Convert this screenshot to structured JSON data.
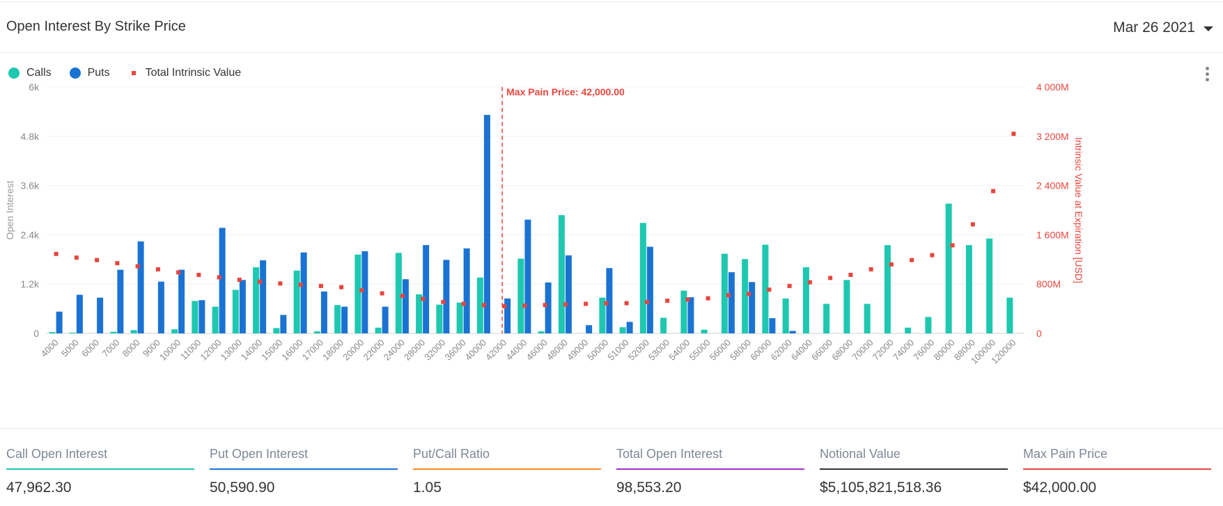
{
  "header": {
    "title": "Open Interest By Strike Price",
    "date": "Mar 26 2021"
  },
  "legend": [
    {
      "label": "Calls",
      "color": "#1ec8b0",
      "shape": "circle"
    },
    {
      "label": "Puts",
      "color": "#1a73d2",
      "shape": "circle"
    },
    {
      "label": "Total Intrinsic Value",
      "color": "#e8453c",
      "shape": "square"
    }
  ],
  "chart_data": {
    "type": "bar",
    "xlabel": "",
    "ylabel": "Open Interest",
    "y2label": "Intrinsic Value at Expiration [USD]",
    "ylim": [
      0,
      6000
    ],
    "y2lim": [
      0,
      4000
    ],
    "yticks": [
      "0",
      "1.2k",
      "2.4k",
      "3.6k",
      "4.8k",
      "6k"
    ],
    "y2ticks": [
      "0",
      "800M",
      "1 600M",
      "2 400M",
      "3 200M",
      "4 000M"
    ],
    "grid": true,
    "categories": [
      "4000",
      "5000",
      "6000",
      "7000",
      "8000",
      "9000",
      "10000",
      "11000",
      "12000",
      "13000",
      "14000",
      "15000",
      "16000",
      "17000",
      "18000",
      "20000",
      "22000",
      "24000",
      "28000",
      "32000",
      "36000",
      "40000",
      "42000",
      "44000",
      "46000",
      "48000",
      "49000",
      "50000",
      "51000",
      "52000",
      "53000",
      "54000",
      "55000",
      "56000",
      "58000",
      "60000",
      "62000",
      "64000",
      "66000",
      "68000",
      "70000",
      "72000",
      "74000",
      "76000",
      "80000",
      "88000",
      "100000",
      "120000"
    ],
    "series": [
      {
        "name": "Calls",
        "color": "#1ec8b0",
        "axis": "left",
        "values": [
          30,
          20,
          0,
          40,
          80,
          0,
          100,
          790,
          650,
          1060,
          1610,
          130,
          1530,
          50,
          690,
          1920,
          140,
          1960,
          950,
          700,
          750,
          1360,
          0,
          1820,
          50,
          2880,
          0,
          870,
          150,
          2690,
          380,
          1040,
          90,
          1940,
          1810,
          2160,
          850,
          1610,
          720,
          1300,
          720,
          2150,
          140,
          400,
          3160,
          2150,
          2310,
          870
        ]
      },
      {
        "name": "Puts",
        "color": "#1a73d2",
        "axis": "right-none",
        "values": [
          530,
          940,
          870,
          1550,
          2240,
          1260,
          1550,
          810,
          2570,
          1300,
          1780,
          450,
          1970,
          1020,
          650,
          2000,
          650,
          1320,
          2150,
          1790,
          2070,
          5320,
          850,
          2770,
          1240,
          1900,
          200,
          1590,
          280,
          2110,
          0,
          880,
          0,
          1490,
          1250,
          370,
          60,
          0,
          0,
          0,
          0,
          0,
          0,
          0,
          0,
          0,
          0,
          0
        ]
      },
      {
        "name": "Total Intrinsic Value",
        "color": "#e8453c",
        "axis": "right",
        "values": [
          1290,
          1230,
          1190,
          1140,
          1090,
          1040,
          990,
          950,
          910,
          870,
          840,
          810,
          790,
          770,
          750,
          700,
          650,
          610,
          560,
          510,
          480,
          460,
          440,
          450,
          460,
          470,
          480,
          490,
          490,
          510,
          530,
          550,
          570,
          620,
          640,
          710,
          770,
          830,
          900,
          950,
          1040,
          1120,
          1190,
          1270,
          1430,
          1770,
          2310,
          3240
        ]
      }
    ],
    "annotation": {
      "label": "Max Pain Price: 42,000.00",
      "category": "42000",
      "color": "#e8453c"
    }
  },
  "stats": [
    {
      "label": "Call Open Interest",
      "value": "47,962.30",
      "color": "#1ec8b0"
    },
    {
      "label": "Put Open Interest",
      "value": "50,590.90",
      "color": "#1a73d2"
    },
    {
      "label": "Put/Call Ratio",
      "value": "1.05",
      "color": "#f08a24"
    },
    {
      "label": "Total Open Interest",
      "value": "98,553.20",
      "color": "#9b2ec5"
    },
    {
      "label": "Notional Value",
      "value": "$5,105,821,518.36",
      "color": "#333333"
    },
    {
      "label": "Max Pain Price",
      "value": "$42,000.00",
      "color": "#e8453c"
    }
  ]
}
